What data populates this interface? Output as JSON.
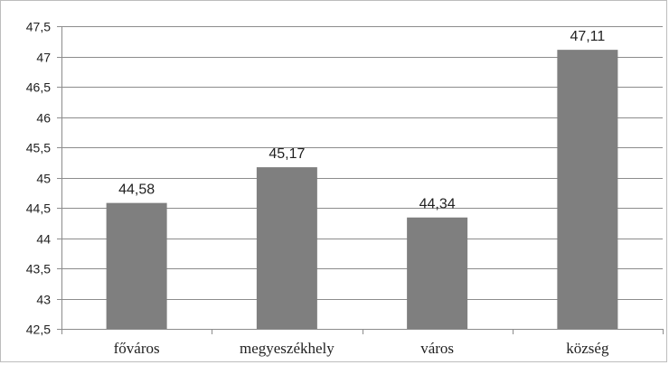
{
  "chart_data": {
    "type": "bar",
    "title": "",
    "xlabel": "",
    "ylabel": "",
    "categories": [
      "főváros",
      "megyeszékhely",
      "város",
      "község"
    ],
    "values": [
      44.58,
      45.17,
      44.34,
      47.11
    ],
    "value_labels": [
      "44,58",
      "45,17",
      "44,34",
      "47,11"
    ],
    "ylim": [
      42.5,
      47.5
    ],
    "y_ticks": [
      42.5,
      43,
      43.5,
      44,
      44.5,
      45,
      45.5,
      46,
      46.5,
      47,
      47.5
    ],
    "y_tick_labels": [
      "42,5",
      "43",
      "43,5",
      "44",
      "44,5",
      "45",
      "45,5",
      "46",
      "46,5",
      "47",
      "47,5"
    ],
    "grid": true,
    "legend": "none",
    "bar_color": "#7f7f7f",
    "grid_color": "#8c8c8c"
  }
}
